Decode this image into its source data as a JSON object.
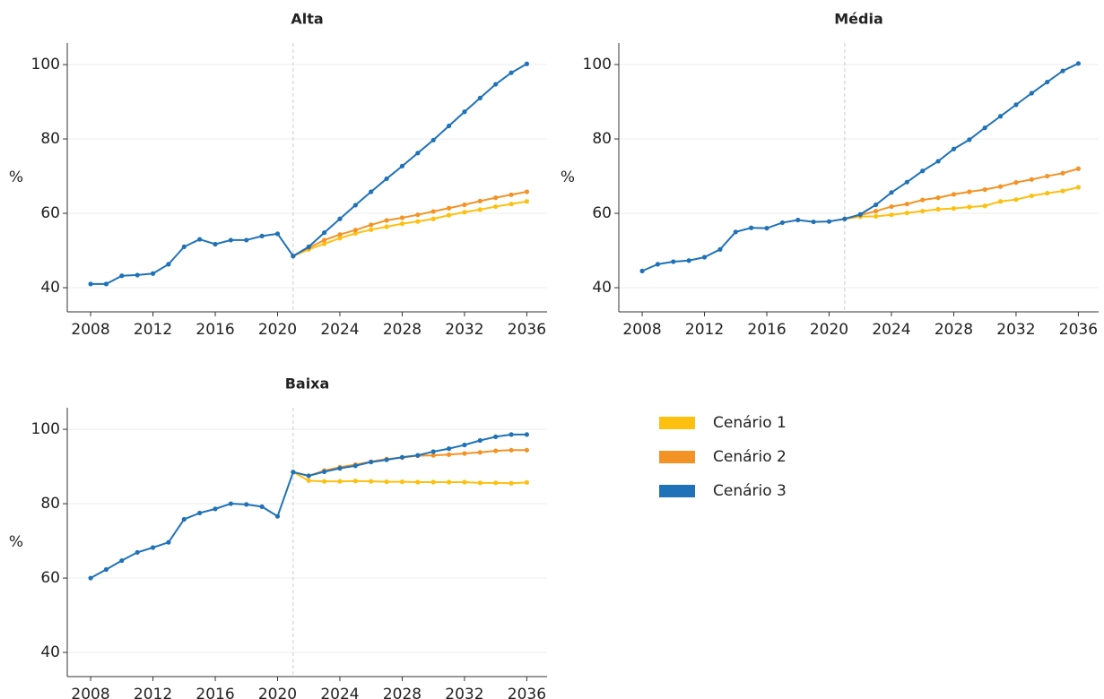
{
  "chart_data": [
    {
      "type": "line",
      "title": "Alta",
      "ylabel": "%",
      "x": [
        2008,
        2009,
        2010,
        2011,
        2012,
        2013,
        2014,
        2015,
        2016,
        2017,
        2018,
        2019,
        2020,
        2021,
        2022,
        2023,
        2024,
        2025,
        2026,
        2027,
        2028,
        2029,
        2030,
        2031,
        2032,
        2033,
        2034,
        2035,
        2036
      ],
      "series": [
        {
          "color": "#fdc010",
          "values": [
            null,
            null,
            null,
            null,
            null,
            null,
            null,
            null,
            null,
            null,
            null,
            null,
            null,
            48.5,
            50.3,
            51.8,
            53.3,
            54.6,
            55.6,
            56.4,
            57.2,
            57.8,
            58.5,
            59.5,
            60.3,
            61,
            61.8,
            62.5,
            63.2
          ]
        },
        {
          "color": "#f39325",
          "values": [
            null,
            null,
            null,
            null,
            null,
            null,
            null,
            null,
            null,
            null,
            null,
            null,
            null,
            48.5,
            50.7,
            52.8,
            54.3,
            55.5,
            56.9,
            58.1,
            58.8,
            59.6,
            60.5,
            61.4,
            62.3,
            63.3,
            64.2,
            65,
            65.8
          ]
        },
        {
          "color": "#1f72b8",
          "values": [
            41,
            41,
            43.2,
            43.4,
            43.8,
            46.3,
            51,
            53,
            51.7,
            52.8,
            52.8,
            53.9,
            54.5,
            48.5,
            51,
            54.8,
            58.5,
            62.2,
            65.8,
            69.3,
            72.7,
            76.2,
            79.7,
            83.5,
            87.3,
            91,
            94.7,
            97.8,
            100.2
          ]
        }
      ],
      "xlim": [
        2006.5,
        2037.3
      ],
      "xticks": [
        2008,
        2012,
        2016,
        2020,
        2024,
        2028,
        2032,
        2036
      ],
      "ylim": [
        33.5,
        105.8
      ],
      "yticks": [
        40,
        60,
        80,
        100
      ],
      "grid": true,
      "vline": 2021
    },
    {
      "type": "line",
      "title": "Média",
      "ylabel": "%",
      "x": [
        2008,
        2009,
        2010,
        2011,
        2012,
        2013,
        2014,
        2015,
        2016,
        2017,
        2018,
        2019,
        2020,
        2021,
        2022,
        2023,
        2024,
        2025,
        2026,
        2027,
        2028,
        2029,
        2030,
        2031,
        2032,
        2033,
        2034,
        2035,
        2036
      ],
      "series": [
        {
          "color": "#fdc010",
          "values": [
            null,
            null,
            null,
            null,
            null,
            null,
            null,
            null,
            null,
            null,
            null,
            null,
            null,
            58.5,
            59.1,
            59.2,
            59.6,
            60.1,
            60.6,
            61.1,
            61.3,
            61.7,
            62,
            63.2,
            63.7,
            64.7,
            65.4,
            66,
            67
          ]
        },
        {
          "color": "#f39325",
          "values": [
            null,
            null,
            null,
            null,
            null,
            null,
            null,
            null,
            null,
            null,
            null,
            null,
            null,
            58.5,
            59.5,
            60.6,
            61.8,
            62.5,
            63.6,
            64.2,
            65.1,
            65.8,
            66.4,
            67.2,
            68.3,
            69.1,
            70,
            70.8,
            72
          ]
        },
        {
          "color": "#1f72b8",
          "values": [
            44.5,
            46.3,
            47,
            47.3,
            48.2,
            50.3,
            55,
            56.1,
            56,
            57.5,
            58.2,
            57.7,
            57.8,
            58.5,
            59.7,
            62.3,
            65.6,
            68.4,
            71.4,
            74,
            77.3,
            79.8,
            83,
            86.1,
            89.2,
            92.3,
            95.3,
            98.3,
            100.3
          ]
        }
      ],
      "xlim": [
        2006.5,
        2037.3
      ],
      "xticks": [
        2008,
        2012,
        2016,
        2020,
        2024,
        2028,
        2032,
        2036
      ],
      "ylim": [
        33.5,
        105.8
      ],
      "yticks": [
        40,
        60,
        80,
        100
      ],
      "grid": true,
      "vline": 2021
    },
    {
      "type": "line",
      "title": "Baixa",
      "ylabel": "%",
      "x": [
        2008,
        2009,
        2010,
        2011,
        2012,
        2013,
        2014,
        2015,
        2016,
        2017,
        2018,
        2019,
        2020,
        2021,
        2022,
        2023,
        2024,
        2025,
        2026,
        2027,
        2028,
        2029,
        2030,
        2031,
        2032,
        2033,
        2034,
        2035,
        2036
      ],
      "series": [
        {
          "name": "Cenário 1",
          "color": "#fdc010",
          "values": [
            null,
            null,
            null,
            null,
            null,
            null,
            null,
            null,
            null,
            null,
            null,
            null,
            null,
            88.5,
            86.2,
            86,
            86,
            86.1,
            86,
            85.9,
            85.9,
            85.8,
            85.8,
            85.8,
            85.8,
            85.6,
            85.6,
            85.5,
            85.7
          ]
        },
        {
          "name": "Cenário 2",
          "color": "#f39325",
          "values": [
            null,
            null,
            null,
            null,
            null,
            null,
            null,
            null,
            null,
            null,
            null,
            null,
            null,
            88.5,
            87.5,
            88.9,
            89.8,
            90.5,
            91.3,
            92,
            92.4,
            92.9,
            93,
            93.2,
            93.5,
            93.8,
            94.2,
            94.4,
            94.4
          ]
        },
        {
          "name": "Cenário 3",
          "color": "#1f72b8",
          "values": [
            60,
            62.3,
            64.7,
            66.9,
            68.2,
            69.6,
            75.8,
            77.5,
            78.6,
            80,
            79.8,
            79.2,
            76.6,
            88.5,
            87.5,
            88.6,
            89.5,
            90.2,
            91.2,
            91.8,
            92.5,
            93,
            94,
            94.8,
            95.8,
            97,
            98,
            98.6,
            98.6
          ]
        }
      ],
      "xlim": [
        2006.5,
        2037.3
      ],
      "xticks": [
        2008,
        2012,
        2016,
        2020,
        2024,
        2028,
        2032,
        2036
      ],
      "ylim": [
        33.5,
        105.8
      ],
      "yticks": [
        40,
        60,
        80,
        100
      ],
      "grid": true,
      "vline": 2021,
      "legend": "right"
    }
  ]
}
